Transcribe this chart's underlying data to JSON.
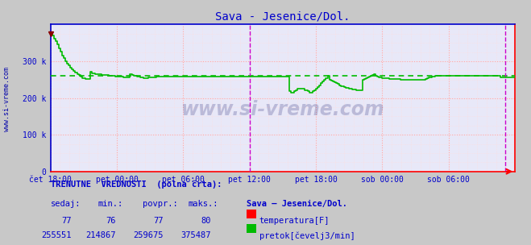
{
  "title": "Sava - Jesenice/Dol.",
  "bg_color": "#c8c8c8",
  "plot_bg_color": "#e8e8f8",
  "xlim": [
    0,
    336
  ],
  "ylim": [
    0,
    400000
  ],
  "yticks": [
    0,
    100000,
    200000,
    300000
  ],
  "ytick_labels": [
    "0",
    "100 k",
    "200 k",
    "300 k"
  ],
  "xtick_labels": [
    "čet 18:00",
    "pet 00:00",
    "pet 06:00",
    "pet 12:00",
    "pet 18:00",
    "sob 00:00",
    "sob 06:00"
  ],
  "xtick_positions": [
    0,
    48,
    96,
    144,
    192,
    240,
    288
  ],
  "vline1_x": 144,
  "vline2_x": 329,
  "hline_y": 259675,
  "watermark": "www.si-vreme.com",
  "line_color_pretok": "#00bb00",
  "dashed_color": "#00bb00",
  "vline_color": "#cc00cc",
  "left_border_color": "#0000cc",
  "top_border_color": "#0000cc",
  "bottom_border_color": "#ff0000",
  "right_marker_color": "#ff0000",
  "title_color": "#0000cc",
  "tick_color": "#0000cc",
  "grid_major_color": "#ffaaaa",
  "grid_minor_color": "#ffdddd",
  "bottom_text1": "TRENUTNE  VREDNOSTI  (polna črta):",
  "bottom_col1_header": "sedaj:",
  "bottom_col2_header": "min.:",
  "bottom_col3_header": "povpr.:",
  "bottom_col4_header": "maks.:",
  "bottom_col5_header": "Sava – Jesenice/Dol.",
  "bottom_val1_row1": "77",
  "bottom_val2_row1": "76",
  "bottom_val3_row1": "77",
  "bottom_val4_row1": "80",
  "bottom_label_row1": "temperatura[F]",
  "bottom_val1_row2": "255551",
  "bottom_val2_row2": "214867",
  "bottom_val3_row2": "259675",
  "bottom_val4_row2": "375487",
  "bottom_label_row2": "pretok[čevelj3/min]",
  "pretok_data": [
    375487,
    370000,
    362000,
    355000,
    345000,
    335000,
    326000,
    316000,
    308000,
    300000,
    294000,
    288000,
    283000,
    278000,
    274000,
    270000,
    266000,
    262000,
    258000,
    255000,
    253000,
    252000,
    251000,
    251000,
    271000,
    268000,
    267000,
    266000,
    265000,
    264000,
    264000,
    263000,
    263000,
    262000,
    262000,
    261000,
    261000,
    260000,
    260000,
    259000,
    259000,
    258000,
    258000,
    258000,
    257000,
    257000,
    257000,
    257000,
    265000,
    263000,
    261000,
    260000,
    259000,
    258000,
    257000,
    256000,
    255000,
    255000,
    255000,
    256000,
    257000,
    257000,
    257000,
    257000,
    258000,
    258000,
    258000,
    258000,
    258000,
    258000,
    258000,
    258000,
    258000,
    258000,
    258000,
    258000,
    258000,
    258000,
    258000,
    258000,
    258000,
    258000,
    258000,
    258000,
    258000,
    258000,
    258000,
    258000,
    258000,
    258000,
    258000,
    258000,
    258000,
    258000,
    258000,
    258000,
    258000,
    258000,
    258000,
    258000,
    258000,
    258000,
    258000,
    258000,
    258000,
    258000,
    258000,
    258000,
    258000,
    258000,
    258000,
    258000,
    258000,
    258000,
    258000,
    258000,
    258000,
    258000,
    258000,
    258000,
    258000,
    258000,
    258000,
    258000,
    258000,
    258000,
    258000,
    258000,
    258000,
    258000,
    258000,
    258000,
    258000,
    258000,
    258000,
    258000,
    258000,
    258000,
    258000,
    258000,
    258000,
    258000,
    258000,
    258000,
    218000,
    215000,
    214867,
    218000,
    222000,
    225000,
    225000,
    225000,
    225000,
    222000,
    220000,
    218000,
    215000,
    214867,
    218000,
    222000,
    225000,
    230000,
    235000,
    240000,
    245000,
    250000,
    255000,
    260000,
    250000,
    248000,
    245000,
    243000,
    240000,
    238000,
    235000,
    233000,
    231000,
    230000,
    228000,
    227000,
    226000,
    225000,
    224000,
    223000,
    222000,
    221000,
    220000,
    220000,
    250000,
    252000,
    254000,
    256000,
    258000,
    260000,
    262000,
    264000,
    260000,
    258000,
    257000,
    256000,
    255000,
    254000,
    254000,
    253000,
    252000,
    252000,
    252000,
    252000,
    252000,
    252000,
    251000,
    250000,
    250000,
    250000,
    250000,
    250000,
    250000,
    250000,
    250000,
    250000,
    250000,
    250000,
    250000,
    250000,
    250000,
    250000,
    252000,
    254000,
    256000,
    257000,
    258000,
    259000,
    260000,
    261000,
    261000,
    261000,
    261000,
    261000,
    261000,
    261000,
    261000,
    261000,
    261000,
    261000,
    261000,
    261000,
    261000,
    261000,
    261000,
    261000,
    261000,
    261000,
    261000,
    261000,
    261000,
    261000,
    261000,
    261000,
    261000,
    261000,
    261000,
    261000,
    261000,
    261000,
    261000,
    261000,
    261000,
    261000,
    261000,
    261000,
    261000,
    255551,
    255551,
    255551,
    255551,
    255551,
    255551,
    255551,
    255551,
    255551,
    255551
  ],
  "sidebar_text": "www.si-vreme.com"
}
